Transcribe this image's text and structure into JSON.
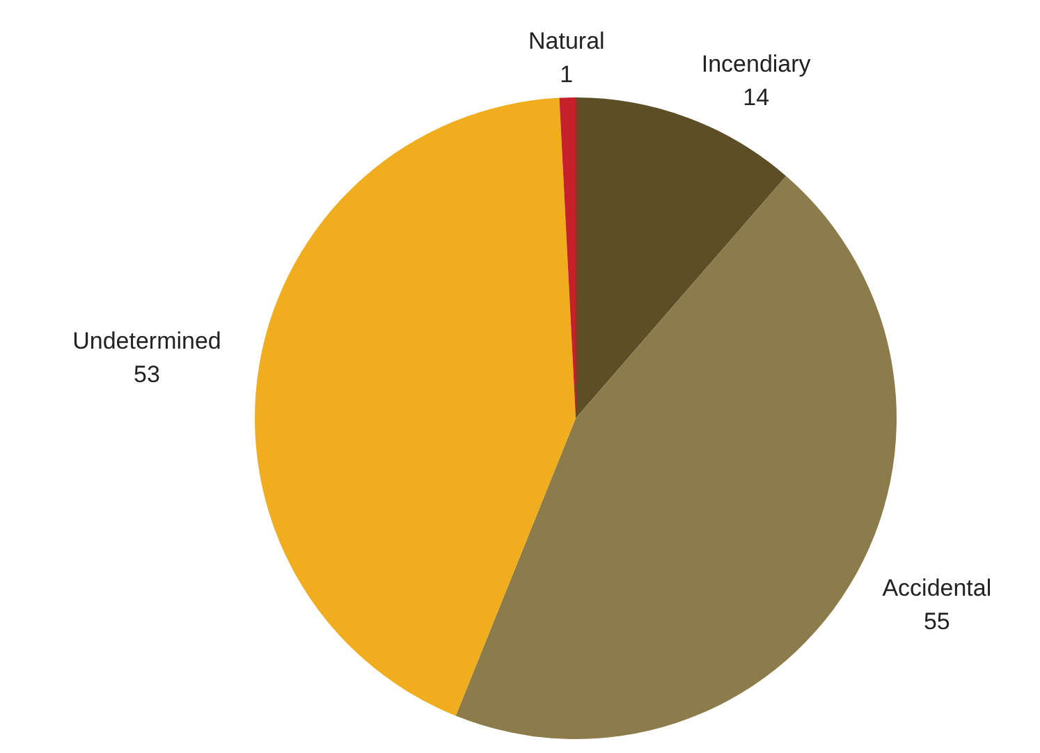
{
  "chart_data": {
    "type": "pie",
    "categories": [
      "Incendiary",
      "Accidental",
      "Undetermined",
      "Natural"
    ],
    "values": [
      14,
      55,
      53,
      1
    ],
    "colors": [
      "#5c4f28",
      "#8c7b4b",
      "#f0ae1e",
      "#c8202a"
    ],
    "data_labels": true,
    "legend": false
  }
}
